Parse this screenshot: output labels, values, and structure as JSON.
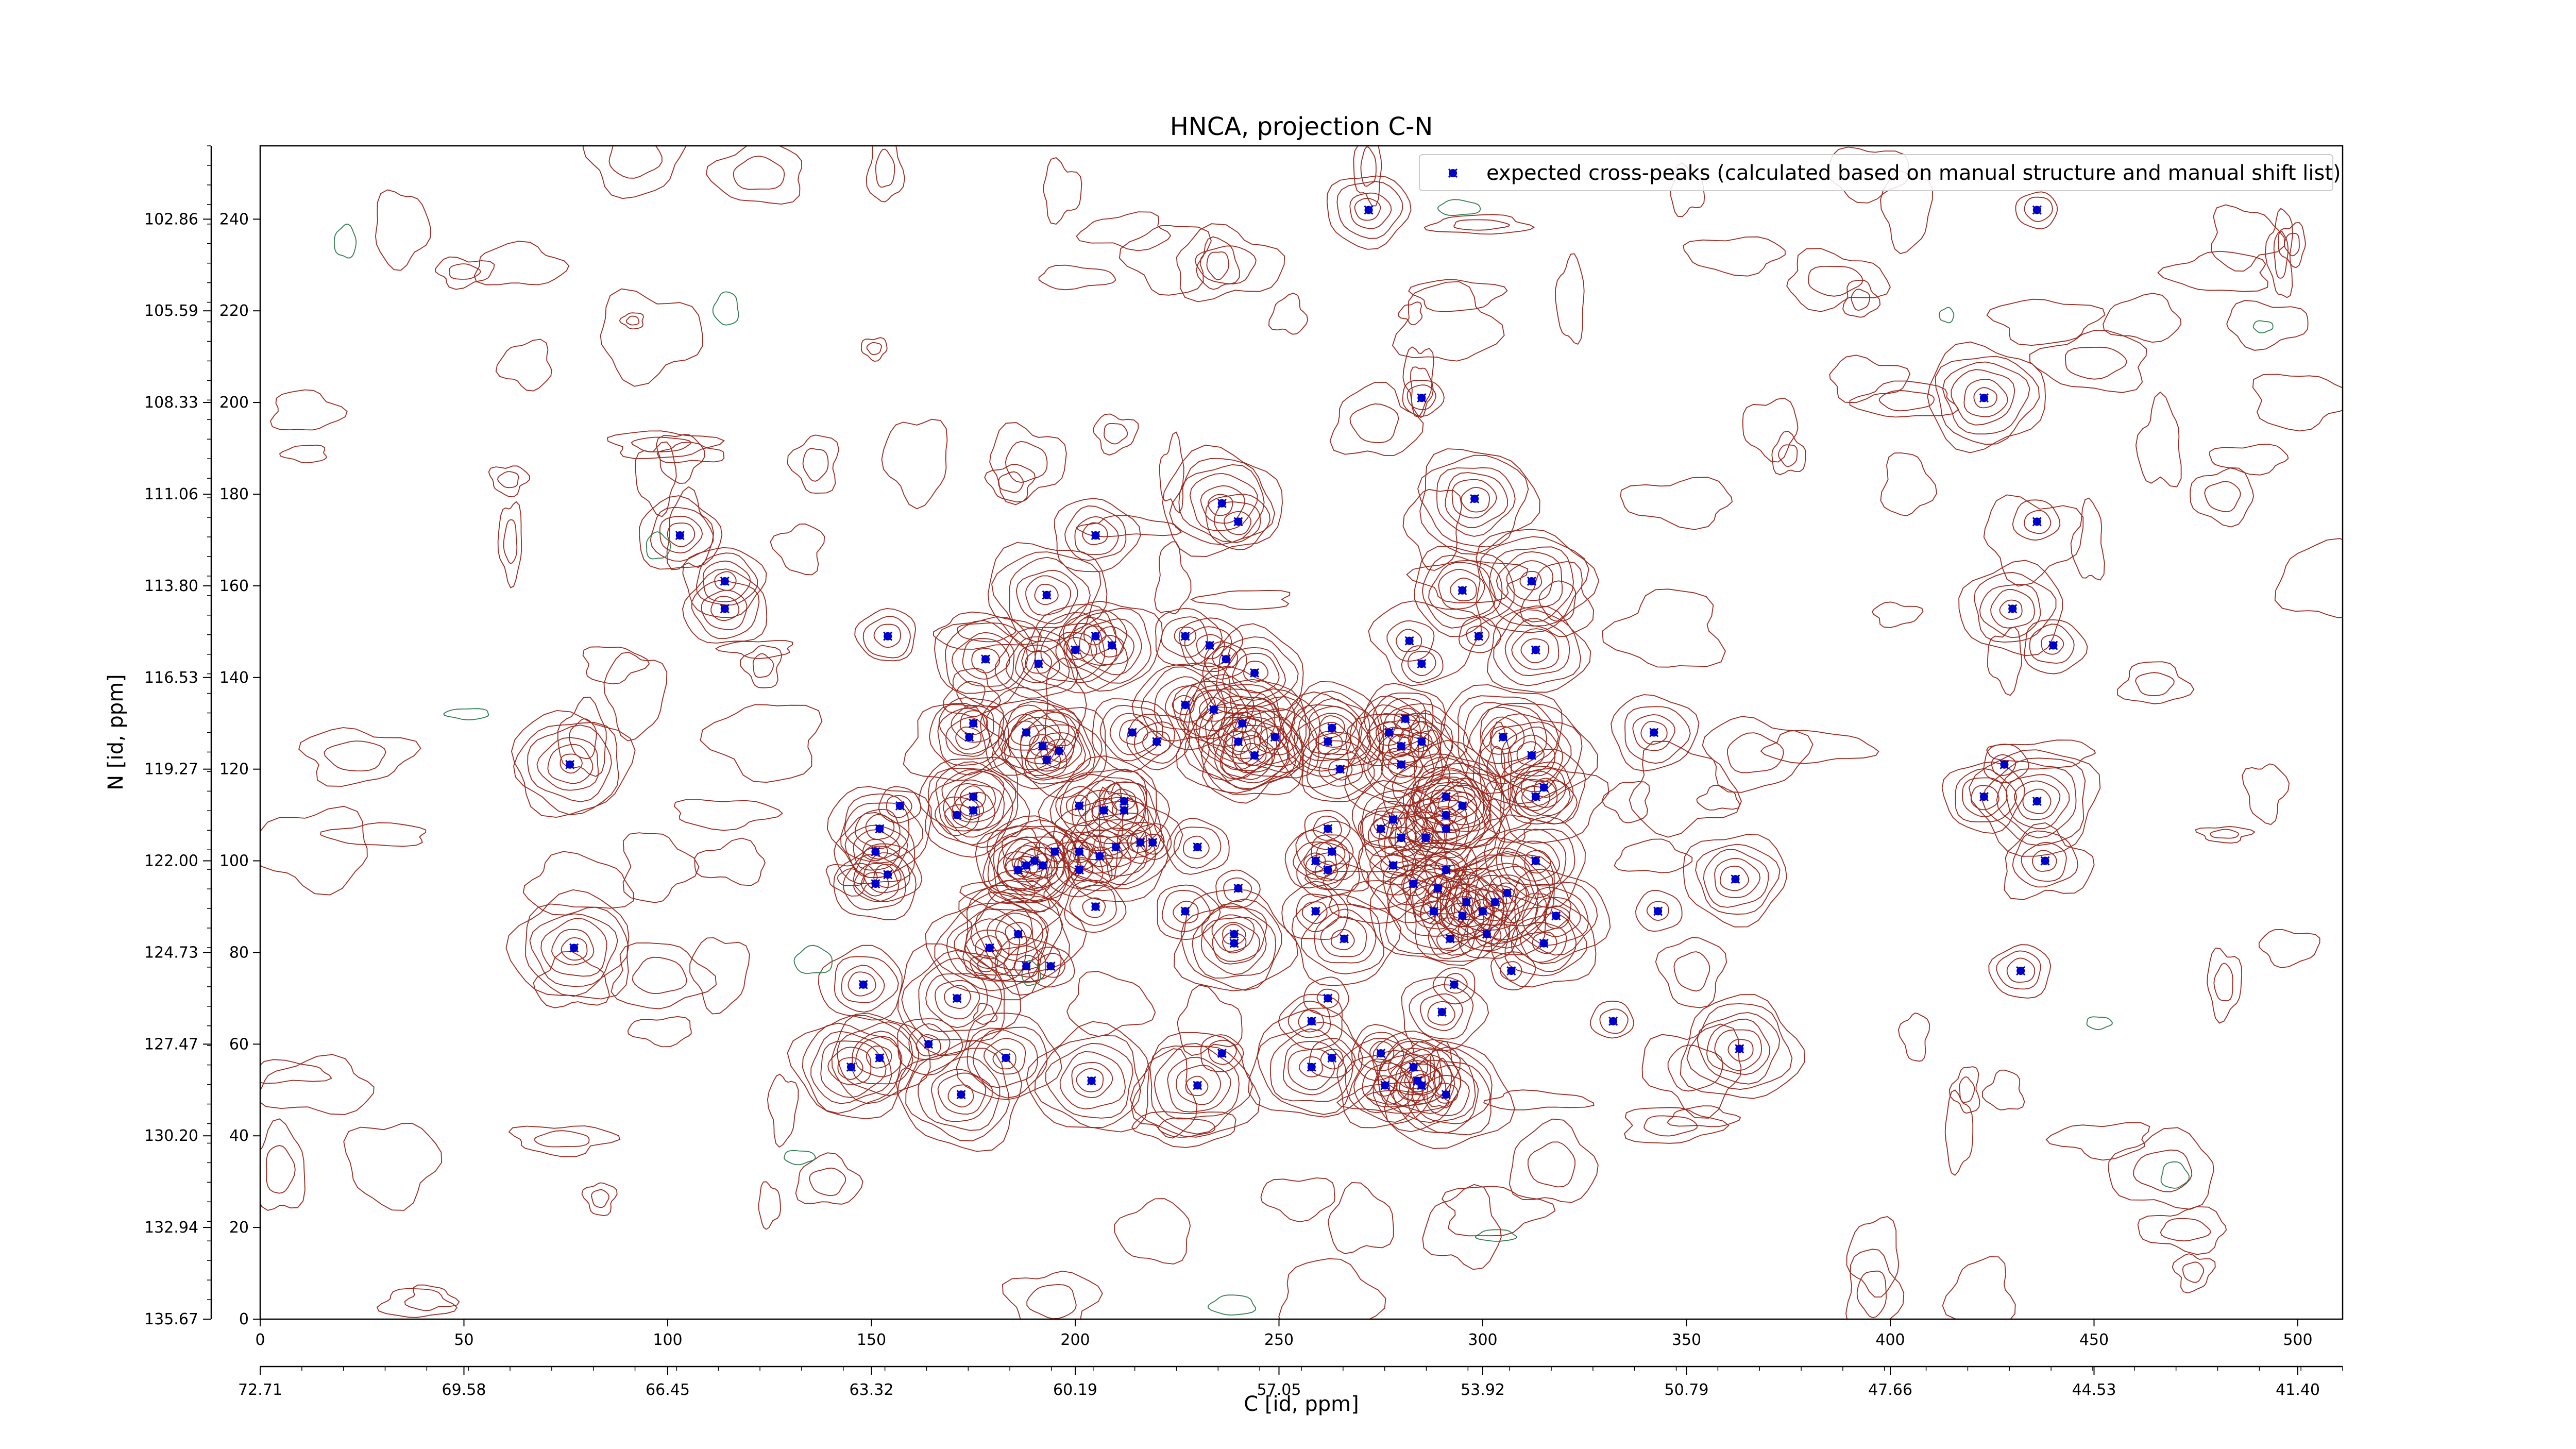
{
  "chart_data": {
    "type": "scatter",
    "title": "HNCA, projection C-N",
    "xlabel": "C [id, ppm]",
    "ylabel": "N [id, ppm]",
    "xlim": [
      0,
      511
    ],
    "ylim": [
      0,
      256
    ],
    "x_ticks": [
      0,
      50,
      100,
      150,
      200,
      250,
      300,
      350,
      400,
      450,
      500
    ],
    "x_ppm_ticks": [
      "72.71",
      "69.58",
      "66.45",
      "63.32",
      "60.19",
      "57.05",
      "53.92",
      "50.79",
      "47.66",
      "44.53",
      "41.40"
    ],
    "y_ticks": [
      0,
      20,
      40,
      60,
      80,
      100,
      120,
      140,
      160,
      180,
      200,
      220,
      240
    ],
    "y_ppm_ticks": [
      "135.67",
      "132.94",
      "130.20",
      "127.47",
      "124.73",
      "122.00",
      "119.27",
      "116.53",
      "113.80",
      "111.06",
      "108.33",
      "105.59",
      "102.86"
    ],
    "grid": false,
    "legend_position": "top-right",
    "colors": {
      "peaks": "#0000cc",
      "contour_positive": "#9b2a20",
      "contour_negative": "#2e7d4f"
    },
    "series": [
      {
        "name": "expected cross-peaks (calculated based on manual structure and manual shift list)",
        "points": [
          [
            272,
            242
          ],
          [
            436,
            242
          ],
          [
            285,
            201
          ],
          [
            423,
            201
          ],
          [
            298,
            179
          ],
          [
            436,
            174
          ],
          [
            103,
            171
          ],
          [
            114,
            161
          ],
          [
            114,
            155
          ],
          [
            236,
            178
          ],
          [
            240,
            174
          ],
          [
            205,
            171
          ],
          [
            154,
            149
          ],
          [
            193,
            158
          ],
          [
            178,
            144
          ],
          [
            191,
            143
          ],
          [
            200,
            146
          ],
          [
            205,
            149
          ],
          [
            209,
            147
          ],
          [
            227,
            149
          ],
          [
            233,
            147
          ],
          [
            237,
            144
          ],
          [
            244,
            141
          ],
          [
            295,
            159
          ],
          [
            312,
            161
          ],
          [
            299,
            149
          ],
          [
            282,
            148
          ],
          [
            285,
            143
          ],
          [
            313,
            146
          ],
          [
            430,
            155
          ],
          [
            440,
            147
          ],
          [
            76,
            121
          ],
          [
            175,
            130
          ],
          [
            174,
            127
          ],
          [
            188,
            128
          ],
          [
            192,
            125
          ],
          [
            196,
            124
          ],
          [
            193,
            122
          ],
          [
            214,
            128
          ],
          [
            220,
            126
          ],
          [
            227,
            134
          ],
          [
            234,
            133
          ],
          [
            240,
            126
          ],
          [
            241,
            130
          ],
          [
            249,
            127
          ],
          [
            244,
            123
          ],
          [
            262,
            126
          ],
          [
            263,
            129
          ],
          [
            277,
            128
          ],
          [
            280,
            125
          ],
          [
            281,
            131
          ],
          [
            285,
            126
          ],
          [
            265,
            120
          ],
          [
            280,
            121
          ],
          [
            305,
            127
          ],
          [
            312,
            123
          ],
          [
            342,
            128
          ],
          [
            428,
            121
          ],
          [
            423,
            114
          ],
          [
            436,
            113
          ],
          [
            157,
            112
          ],
          [
            152,
            107
          ],
          [
            151,
            102
          ],
          [
            154,
            97
          ],
          [
            151,
            95
          ],
          [
            171,
            110
          ],
          [
            175,
            111
          ],
          [
            175,
            114
          ],
          [
            201,
            112
          ],
          [
            207,
            111
          ],
          [
            212,
            111
          ],
          [
            212,
            113
          ],
          [
            192,
            99
          ],
          [
            186,
            98
          ],
          [
            188,
            99
          ],
          [
            190,
            100
          ],
          [
            195,
            102
          ],
          [
            201,
            102
          ],
          [
            201,
            98
          ],
          [
            206,
            101
          ],
          [
            210,
            103
          ],
          [
            216,
            104
          ],
          [
            219,
            104
          ],
          [
            230,
            103
          ],
          [
            262,
            107
          ],
          [
            263,
            102
          ],
          [
            262,
            98
          ],
          [
            259,
            100
          ],
          [
            275,
            107
          ],
          [
            278,
            109
          ],
          [
            280,
            105
          ],
          [
            286,
            105
          ],
          [
            291,
            107
          ],
          [
            291,
            114
          ],
          [
            291,
            110
          ],
          [
            295,
            112
          ],
          [
            313,
            100
          ],
          [
            313,
            114
          ],
          [
            315,
            116
          ],
          [
            438,
            100
          ],
          [
            278,
            99
          ],
          [
            291,
            98
          ],
          [
            283,
            95
          ],
          [
            289,
            94
          ],
          [
            296,
            91
          ],
          [
            288,
            89
          ],
          [
            295,
            88
          ],
          [
            300,
            89
          ],
          [
            303,
            91
          ],
          [
            306,
            93
          ],
          [
            318,
            88
          ],
          [
            240,
            94
          ],
          [
            227,
            89
          ],
          [
            205,
            90
          ],
          [
            259,
            89
          ],
          [
            239,
            84
          ],
          [
            239,
            82
          ],
          [
            266,
            83
          ],
          [
            292,
            83
          ],
          [
            301,
            84
          ],
          [
            315,
            82
          ],
          [
            362,
            96
          ],
          [
            343,
            89
          ],
          [
            179,
            81
          ],
          [
            186,
            84
          ],
          [
            188,
            77
          ],
          [
            194,
            77
          ],
          [
            77,
            81
          ],
          [
            148,
            73
          ],
          [
            171,
            70
          ],
          [
            432,
            76
          ],
          [
            293,
            73
          ],
          [
            307,
            76
          ],
          [
            290,
            67
          ],
          [
            262,
            70
          ],
          [
            258,
            65
          ],
          [
            332,
            65
          ],
          [
            236,
            58
          ],
          [
            258,
            55
          ],
          [
            263,
            57
          ],
          [
            275,
            58
          ],
          [
            283,
            55
          ],
          [
            284,
            52
          ],
          [
            276,
            51
          ],
          [
            285,
            51
          ],
          [
            291,
            49
          ],
          [
            145,
            55
          ],
          [
            152,
            57
          ],
          [
            164,
            60
          ],
          [
            183,
            57
          ],
          [
            204,
            52
          ],
          [
            230,
            51
          ],
          [
            172,
            49
          ],
          [
            363,
            59
          ]
        ]
      }
    ]
  }
}
